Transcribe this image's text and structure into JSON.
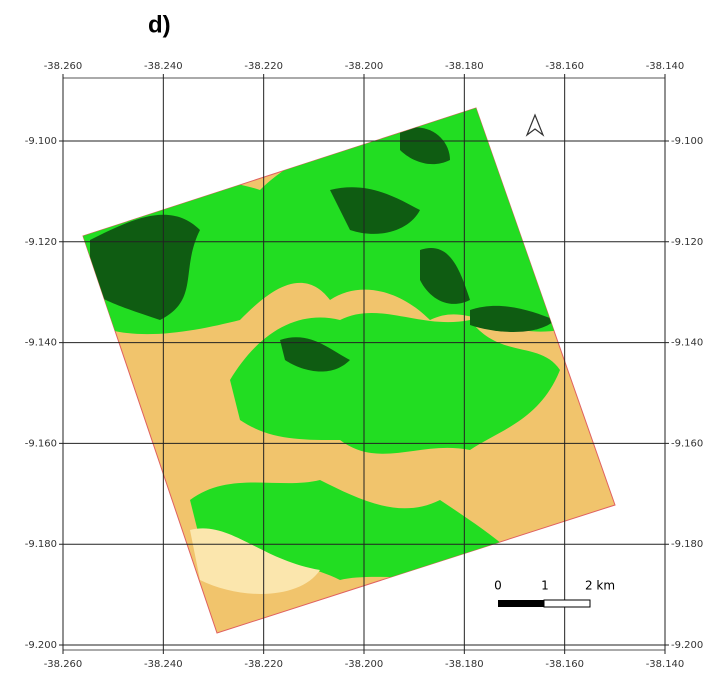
{
  "panel_label": "d)",
  "grid": {
    "longitude_labels": [
      "-38.260",
      "-38.240",
      "-38.220",
      "-38.200",
      "-38.180",
      "-38.160",
      "-38.140"
    ],
    "latitude_labels": [
      "-9.100",
      "-9.120",
      "-9.140",
      "-9.160",
      "-9.180",
      "-9.200"
    ]
  },
  "scale_bar": {
    "labels": [
      "0",
      "1",
      "2 km"
    ]
  }
}
